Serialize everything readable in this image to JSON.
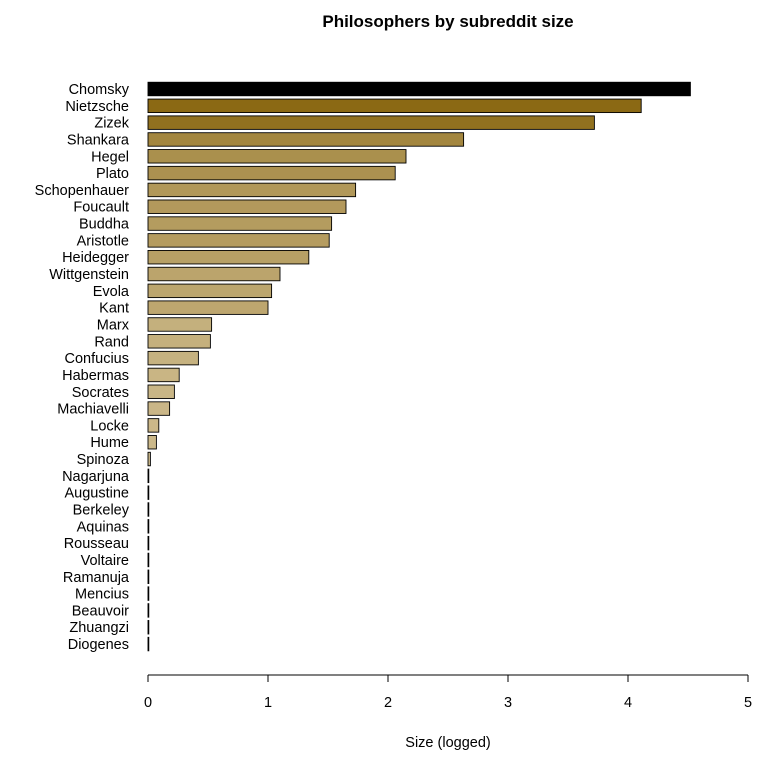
{
  "chart_data": {
    "type": "bar",
    "orientation": "horizontal",
    "title": "Philosophers by subreddit size",
    "xlabel": "Size (logged)",
    "ylabel": "",
    "xlim": [
      0,
      5
    ],
    "xticks": [
      "0",
      "1",
      "2",
      "3",
      "4",
      "5"
    ],
    "grid": false,
    "categories": [
      "Chomsky",
      "Nietzsche",
      "Zizek",
      "Shankara",
      "Hegel",
      "Plato",
      "Schopenhauer",
      "Foucault",
      "Buddha",
      "Aristotle",
      "Heidegger",
      "Wittgenstein",
      "Evola",
      "Kant",
      "Marx",
      "Rand",
      "Confucius",
      "Habermas",
      "Socrates",
      "Machiavelli",
      "Locke",
      "Hume",
      "Spinoza",
      "Nagarjuna",
      "Augustine",
      "Berkeley",
      "Aquinas",
      "Rousseau",
      "Voltaire",
      "Ramanuja",
      "Mencius",
      "Beauvoir",
      "Zhuangzi",
      "Diogenes"
    ],
    "values": [
      4.52,
      4.11,
      3.72,
      2.63,
      2.15,
      2.06,
      1.73,
      1.65,
      1.53,
      1.51,
      1.34,
      1.1,
      1.03,
      1.0,
      0.53,
      0.52,
      0.42,
      0.26,
      0.22,
      0.18,
      0.09,
      0.07,
      0.02,
      0,
      0,
      0,
      0,
      0,
      0,
      0,
      0,
      0,
      0,
      0
    ],
    "colors": {
      "max_bar": "#000000",
      "gradient_dark": "#8b6914",
      "gradient_light": "#cdba8c",
      "bar_stroke": "#000000"
    }
  }
}
